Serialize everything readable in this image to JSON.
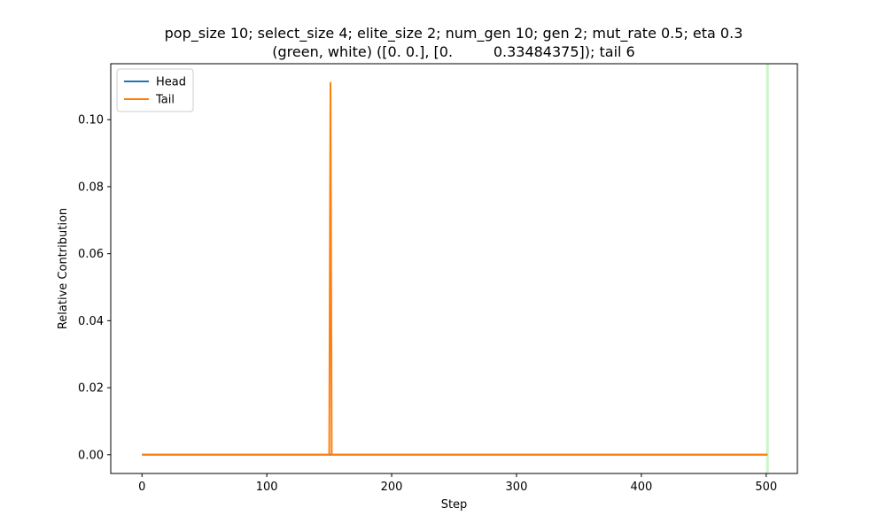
{
  "chart_data": {
    "type": "line",
    "title_lines": [
      "pop_size 10; select_size 4; elite_size 2; num_gen 10; gen 2; mut_rate 0.5; eta 0.3",
      "(green, white) ([0. 0.], [0.         0.33484375]); tail 6"
    ],
    "xlabel": "Step",
    "ylabel": "Relative Contribution",
    "xlim": [
      -25,
      525
    ],
    "ylim": [
      -0.0056,
      0.1167
    ],
    "xticks": [
      0,
      100,
      200,
      300,
      400,
      500
    ],
    "xtick_labels": [
      "0",
      "100",
      "200",
      "300",
      "400",
      "500"
    ],
    "yticks": [
      0.0,
      0.02,
      0.04,
      0.06,
      0.08,
      0.1
    ],
    "ytick_labels": [
      "0.00",
      "0.02",
      "0.04",
      "0.06",
      "0.08",
      "0.10"
    ],
    "legend_position": "top-left",
    "grid": false,
    "vline": {
      "x": 501,
      "color": "#90ee90"
    },
    "series": [
      {
        "name": "Head",
        "color": "#1f77b4",
        "points": [
          [
            0,
            0.0
          ],
          [
            501,
            0.0
          ]
        ]
      },
      {
        "name": "Tail",
        "color": "#ff7f0e",
        "points": [
          [
            0,
            0.0
          ],
          [
            150,
            0.0
          ],
          [
            151,
            0.111
          ],
          [
            152,
            0.0
          ],
          [
            501,
            0.0
          ]
        ]
      }
    ]
  }
}
